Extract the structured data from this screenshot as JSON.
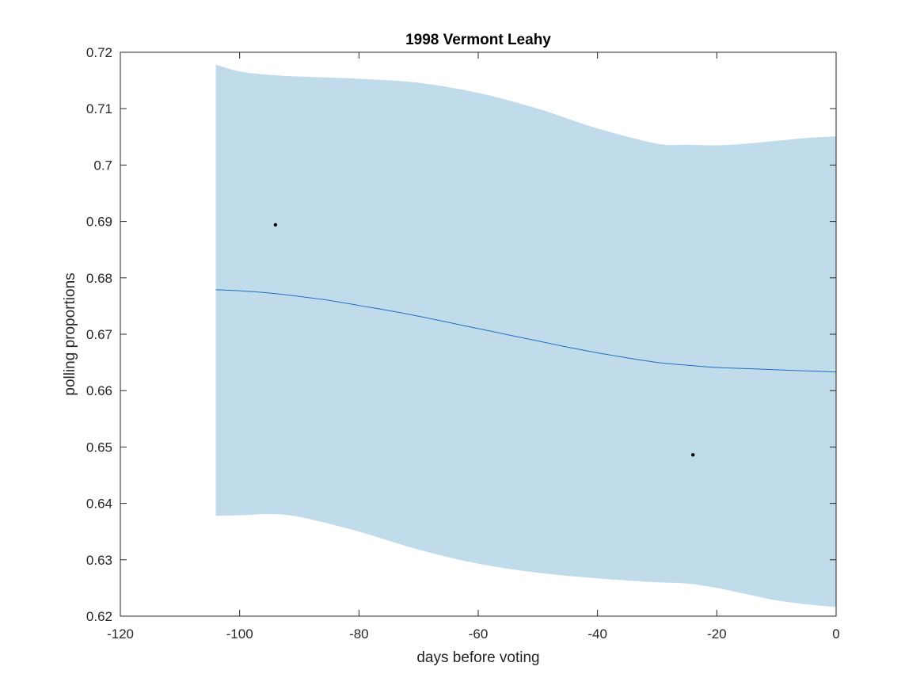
{
  "chart_data": {
    "type": "line",
    "title": "1998 Vermont Leahy",
    "xlabel": "days before voting",
    "ylabel": "polling proportions",
    "xlim": [
      -120,
      0
    ],
    "ylim": [
      0.62,
      0.72
    ],
    "xticks": [
      -120,
      -100,
      -80,
      -60,
      -40,
      -20,
      0
    ],
    "xtick_labels": [
      "-120",
      "-100",
      "-80",
      "-60",
      "-40",
      "-20",
      "0"
    ],
    "yticks": [
      0.62,
      0.63,
      0.64,
      0.65,
      0.66,
      0.67,
      0.68,
      0.69,
      0.7,
      0.71,
      0.72
    ],
    "ytick_labels": [
      "0.62",
      "0.63",
      "0.64",
      "0.65",
      "0.66",
      "0.67",
      "0.68",
      "0.69",
      "0.7",
      "0.71",
      "0.72"
    ],
    "grid": false,
    "band": {
      "x": [
        -104,
        -100,
        -95,
        -90,
        -80,
        -70,
        -60,
        -50,
        -40,
        -30,
        -25,
        -20,
        -15,
        -10,
        -5,
        0
      ],
      "upper": [
        0.7178,
        0.7166,
        0.716,
        0.7157,
        0.7153,
        0.7146,
        0.7128,
        0.71,
        0.7065,
        0.7038,
        0.7036,
        0.7035,
        0.7038,
        0.7043,
        0.7048,
        0.7051
      ],
      "lower": [
        0.6378,
        0.6379,
        0.6381,
        0.6376,
        0.635,
        0.6318,
        0.6293,
        0.6277,
        0.6267,
        0.626,
        0.6258,
        0.625,
        0.6239,
        0.6228,
        0.6221,
        0.6216
      ],
      "color": "#c0dcea"
    },
    "series": [
      {
        "x": [
          -104,
          -100,
          -95,
          -90,
          -85,
          -80,
          -75,
          -70,
          -65,
          -60,
          -55,
          -50,
          -45,
          -40,
          -35,
          -30,
          -25,
          -20,
          -15,
          -10,
          -5,
          0
        ],
        "values": [
          0.6779,
          0.6777,
          0.6773,
          0.6767,
          0.676,
          0.6751,
          0.6742,
          0.6732,
          0.6721,
          0.671,
          0.6699,
          0.6688,
          0.6677,
          0.6667,
          0.6658,
          0.665,
          0.6645,
          0.6641,
          0.6639,
          0.6637,
          0.6635,
          0.6633
        ],
        "color": "#1f6fbf"
      }
    ],
    "points": {
      "x": [
        -94,
        -24
      ],
      "y": [
        0.6894,
        0.6486
      ],
      "color": "#000000"
    }
  }
}
